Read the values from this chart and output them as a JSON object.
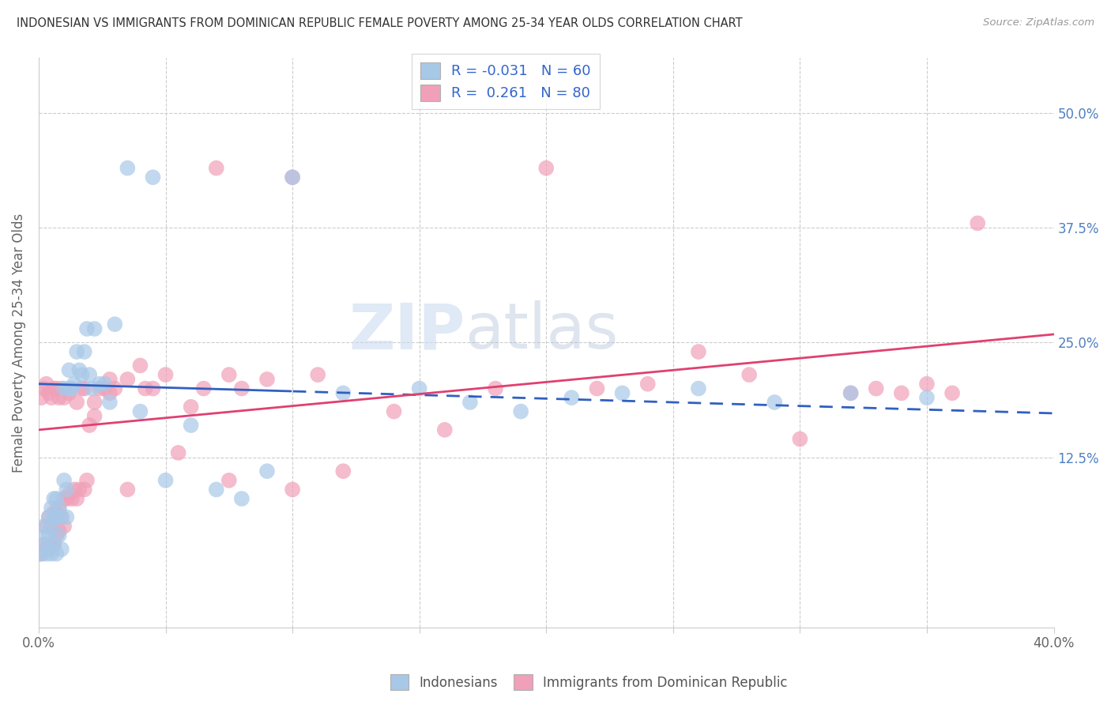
{
  "title": "INDONESIAN VS IMMIGRANTS FROM DOMINICAN REPUBLIC FEMALE POVERTY AMONG 25-34 YEAR OLDS CORRELATION CHART",
  "source": "Source: ZipAtlas.com",
  "ylabel": "Female Poverty Among 25-34 Year Olds",
  "xmin": 0.0,
  "xmax": 0.4,
  "ymin": -0.06,
  "ymax": 0.56,
  "blue_color": "#A8C8E8",
  "pink_color": "#F0A0B8",
  "blue_line_color": "#3060C0",
  "pink_line_color": "#E04070",
  "blue_line_solid_end": 0.1,
  "legend_blue_r": "-0.031",
  "legend_blue_n": "60",
  "legend_pink_r": "0.261",
  "legend_pink_n": "80",
  "indonesians_label": "Indonesians",
  "dominican_label": "Immigrants from Dominican Republic",
  "watermark_zip": "ZIP",
  "watermark_atlas": "atlas",
  "ytick_positions": [
    0.125,
    0.25,
    0.375,
    0.5
  ],
  "ytick_labels": [
    "12.5%",
    "25.0%",
    "37.5%",
    "50.0%"
  ],
  "xtick_positions": [
    0.0,
    0.05,
    0.1,
    0.15,
    0.2,
    0.25,
    0.3,
    0.35,
    0.4
  ],
  "blue_intercept": 0.205,
  "blue_slope": -0.08,
  "pink_intercept": 0.155,
  "pink_slope": 0.26,
  "blue_x": [
    0.001,
    0.002,
    0.002,
    0.003,
    0.003,
    0.004,
    0.004,
    0.004,
    0.005,
    0.005,
    0.005,
    0.006,
    0.006,
    0.006,
    0.007,
    0.007,
    0.007,
    0.008,
    0.008,
    0.009,
    0.009,
    0.01,
    0.01,
    0.011,
    0.011,
    0.012,
    0.012,
    0.013,
    0.014,
    0.015,
    0.016,
    0.017,
    0.018,
    0.019,
    0.02,
    0.021,
    0.022,
    0.024,
    0.026,
    0.028,
    0.03,
    0.035,
    0.04,
    0.045,
    0.05,
    0.06,
    0.07,
    0.08,
    0.09,
    0.1,
    0.12,
    0.15,
    0.17,
    0.19,
    0.21,
    0.23,
    0.26,
    0.29,
    0.32,
    0.35
  ],
  "blue_y": [
    0.02,
    0.03,
    0.05,
    0.02,
    0.04,
    0.025,
    0.04,
    0.06,
    0.02,
    0.05,
    0.07,
    0.03,
    0.06,
    0.08,
    0.02,
    0.06,
    0.08,
    0.04,
    0.07,
    0.025,
    0.06,
    0.1,
    0.2,
    0.06,
    0.09,
    0.2,
    0.22,
    0.2,
    0.205,
    0.24,
    0.22,
    0.215,
    0.24,
    0.265,
    0.215,
    0.2,
    0.265,
    0.205,
    0.205,
    0.185,
    0.27,
    0.44,
    0.175,
    0.43,
    0.1,
    0.16,
    0.09,
    0.08,
    0.11,
    0.43,
    0.195,
    0.2,
    0.185,
    0.175,
    0.19,
    0.195,
    0.2,
    0.185,
    0.195,
    0.19
  ],
  "pink_x": [
    0.001,
    0.002,
    0.003,
    0.003,
    0.004,
    0.004,
    0.005,
    0.005,
    0.006,
    0.006,
    0.007,
    0.007,
    0.008,
    0.008,
    0.009,
    0.01,
    0.01,
    0.011,
    0.012,
    0.013,
    0.014,
    0.015,
    0.016,
    0.017,
    0.018,
    0.019,
    0.02,
    0.022,
    0.024,
    0.026,
    0.028,
    0.03,
    0.035,
    0.04,
    0.045,
    0.05,
    0.06,
    0.065,
    0.07,
    0.075,
    0.08,
    0.09,
    0.1,
    0.11,
    0.12,
    0.14,
    0.16,
    0.18,
    0.2,
    0.22,
    0.24,
    0.26,
    0.28,
    0.3,
    0.32,
    0.33,
    0.34,
    0.35,
    0.36,
    0.37,
    0.001,
    0.002,
    0.003,
    0.004,
    0.005,
    0.006,
    0.007,
    0.008,
    0.009,
    0.01,
    0.012,
    0.015,
    0.018,
    0.022,
    0.028,
    0.035,
    0.042,
    0.055,
    0.075,
    0.1
  ],
  "pink_y": [
    0.02,
    0.03,
    0.025,
    0.05,
    0.03,
    0.06,
    0.025,
    0.05,
    0.03,
    0.065,
    0.04,
    0.065,
    0.045,
    0.07,
    0.06,
    0.05,
    0.08,
    0.08,
    0.085,
    0.08,
    0.09,
    0.08,
    0.09,
    0.2,
    0.09,
    0.1,
    0.16,
    0.17,
    0.2,
    0.2,
    0.21,
    0.2,
    0.21,
    0.225,
    0.2,
    0.215,
    0.18,
    0.2,
    0.44,
    0.215,
    0.2,
    0.21,
    0.43,
    0.215,
    0.11,
    0.175,
    0.155,
    0.2,
    0.44,
    0.2,
    0.205,
    0.24,
    0.215,
    0.145,
    0.195,
    0.2,
    0.195,
    0.205,
    0.195,
    0.38,
    0.19,
    0.2,
    0.205,
    0.195,
    0.19,
    0.2,
    0.2,
    0.19,
    0.2,
    0.19,
    0.195,
    0.185,
    0.2,
    0.185,
    0.195,
    0.09,
    0.2,
    0.13,
    0.1,
    0.09
  ]
}
